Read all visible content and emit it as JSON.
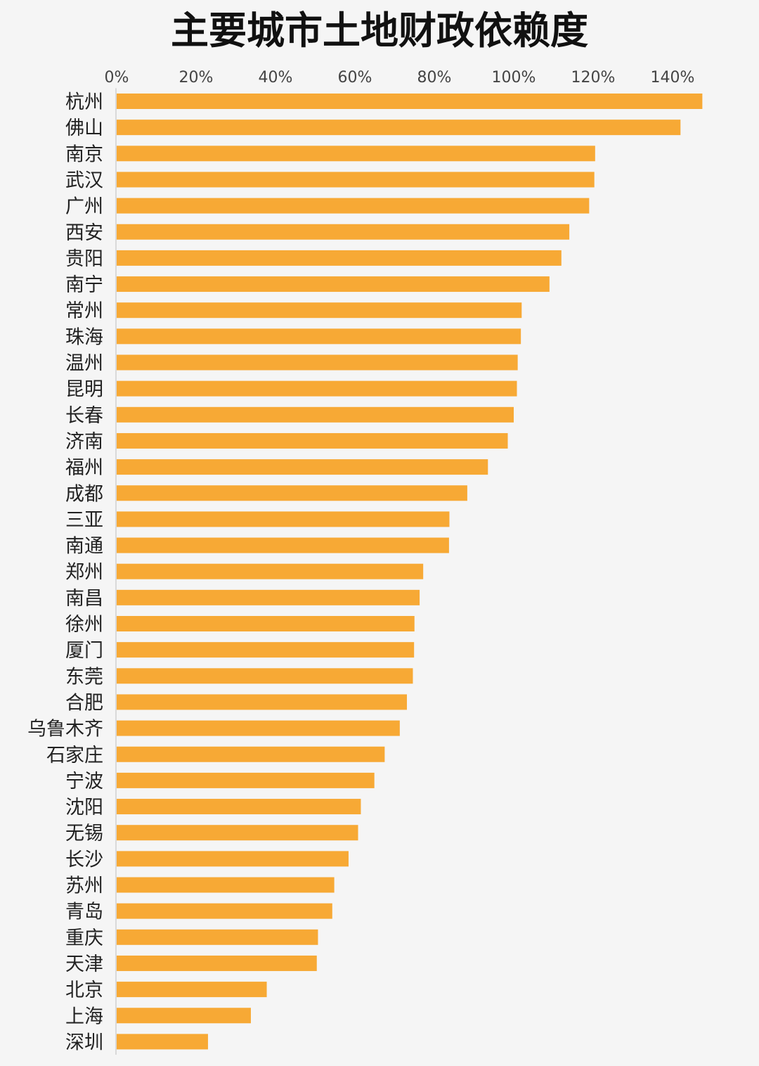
{
  "chart_data": {
    "type": "bar",
    "orientation": "horizontal",
    "title": "主要城市土地财政依赖度",
    "xlabel": "",
    "ylabel": "",
    "xlim": [
      0,
      150
    ],
    "x_ticks": [
      0,
      20,
      40,
      60,
      80,
      100,
      120,
      140
    ],
    "x_tick_labels": [
      "0%",
      "20%",
      "40%",
      "60%",
      "80%",
      "100%",
      "120%",
      "140%"
    ],
    "axis_position": "top",
    "grid": false,
    "bar_color": "#f7a935",
    "categories": [
      "杭州",
      "佛山",
      "南京",
      "武汉",
      "广州",
      "西安",
      "贵阳",
      "南宁",
      "常州",
      "珠海",
      "温州",
      "昆明",
      "长春",
      "济南",
      "福州",
      "成都",
      "三亚",
      "南通",
      "郑州",
      "南昌",
      "徐州",
      "厦门",
      "东莞",
      "合肥",
      "乌鲁木齐",
      "石家庄",
      "宁波",
      "沈阳",
      "无锡",
      "长沙",
      "苏州",
      "青岛",
      "重庆",
      "天津",
      "北京",
      "上海",
      "深圳"
    ],
    "values": [
      147.5,
      142,
      120.5,
      120.3,
      119,
      114,
      112,
      109,
      102,
      101.8,
      101,
      100.8,
      100,
      98.5,
      93.5,
      88.3,
      83.8,
      83.7,
      77.2,
      76.3,
      75,
      74.9,
      74.6,
      73.1,
      71.3,
      67.5,
      64.9,
      61.5,
      60.8,
      58.4,
      54.8,
      54.3,
      50.7,
      50.4,
      37.8,
      33.8,
      23
    ],
    "unit": "%"
  }
}
